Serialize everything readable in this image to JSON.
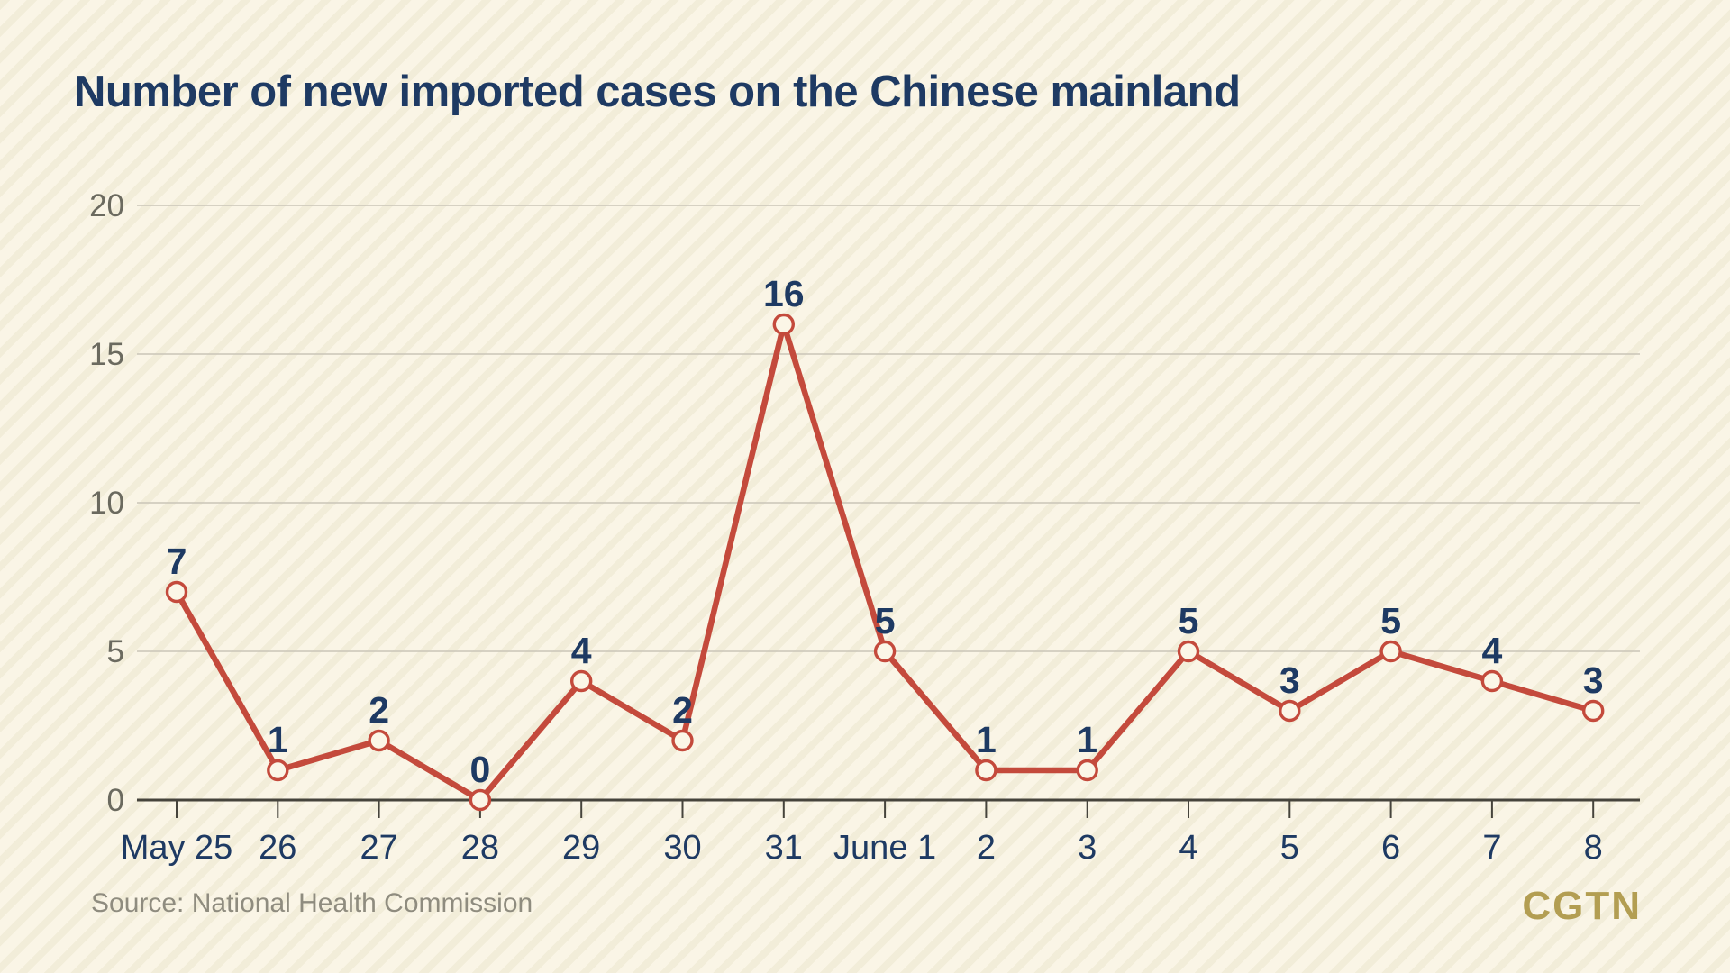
{
  "page": {
    "title": "Number of new imported cases on the Chinese mainland",
    "source": "Source: National Health Commission",
    "logo": "CGTN"
  },
  "chart_data": {
    "type": "line",
    "title": "Number of new imported cases on the Chinese mainland",
    "categories": [
      "May 25",
      "26",
      "27",
      "28",
      "29",
      "30",
      "31",
      "June 1",
      "2",
      "3",
      "4",
      "5",
      "6",
      "7",
      "8"
    ],
    "values": [
      7,
      1,
      2,
      0,
      4,
      2,
      16,
      5,
      1,
      1,
      5,
      3,
      5,
      4,
      3
    ],
    "series_name": "New imported cases",
    "xlabel": "",
    "ylabel": "",
    "ylim": [
      0,
      20
    ],
    "yticks": [
      0,
      5,
      10,
      15,
      20
    ],
    "grid": true,
    "legend": "none",
    "marker": "open-circle",
    "data_labels": true,
    "colors": {
      "background": "#faf5e6",
      "stripe": "#f2edd9",
      "title": "#1e3a63",
      "line": "#c44a3c",
      "marker_fill": "#fbf6e7",
      "label": "#1e3a63",
      "axis": "#46443c",
      "gridline": "#c9c5b7",
      "ytick_label": "#6b6a5f",
      "source": "#8f8c7f",
      "logo": "#b39e52"
    }
  }
}
